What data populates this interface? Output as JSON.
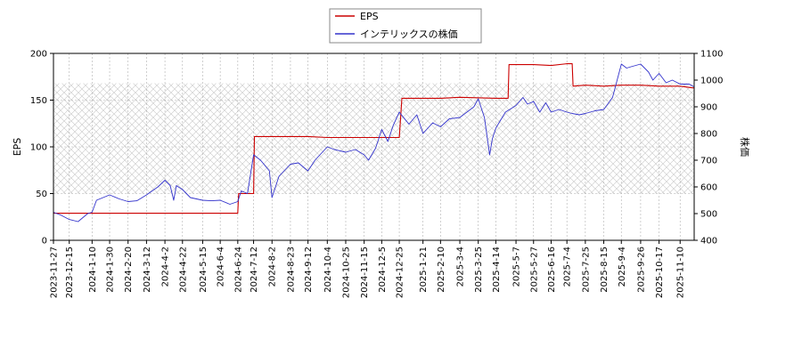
{
  "chart_data": {
    "type": "line",
    "title": "",
    "legend_position": "top-center",
    "grid": true,
    "hatched_band": {
      "axis": "left",
      "from": 50,
      "to": 168
    },
    "x": {
      "label": "",
      "start": "2023-11-27",
      "end": "2025-11-26",
      "tick_labels": [
        "2023-11-27",
        "2023-12-15",
        "2024-1-10",
        "2024-1-30",
        "2024-2-20",
        "2024-3-12",
        "2024-4-2",
        "2024-4-22",
        "2024-5-15",
        "2024-6-4",
        "2024-6-24",
        "2024-7-12",
        "2024-8-2",
        "2024-8-23",
        "2024-9-12",
        "2024-10-4",
        "2024-10-25",
        "2024-11-15",
        "2024-12-5",
        "2024-12-25",
        "2025-1-21",
        "2025-2-10",
        "2025-3-4",
        "2025-3-25",
        "2025-4-14",
        "2025-5-7",
        "2025-5-27",
        "2025-6-16",
        "2025-7-4",
        "2025-7-25",
        "2025-8-15",
        "2025-9-4",
        "2025-9-26",
        "2025-10-17",
        "2025-11-10"
      ]
    },
    "y_left": {
      "label": "EPS",
      "ylim": [
        0,
        200
      ],
      "ticks": [
        0,
        50,
        100,
        150,
        200
      ]
    },
    "y_right": {
      "label": "株価",
      "ylim": [
        400,
        1100
      ],
      "ticks": [
        400,
        500,
        600,
        700,
        800,
        900,
        1000,
        1100
      ]
    },
    "series": [
      {
        "name": "EPS",
        "axis": "left",
        "color": "#cc0000",
        "step": true,
        "points": [
          [
            "2023-11-27",
            29
          ],
          [
            "2024-6-24",
            29
          ],
          [
            "2024-6-25",
            50
          ],
          [
            "2024-7-12",
            50
          ],
          [
            "2024-7-13",
            111
          ],
          [
            "2024-8-23",
            111
          ],
          [
            "2024-9-12",
            111
          ],
          [
            "2024-10-4",
            110
          ],
          [
            "2024-11-15",
            110
          ],
          [
            "2024-12-25",
            110
          ],
          [
            "2024-12-28",
            152
          ],
          [
            "2025-2-10",
            152
          ],
          [
            "2025-3-4",
            153
          ],
          [
            "2025-4-14",
            152
          ],
          [
            "2025-4-28",
            152
          ],
          [
            "2025-4-29",
            188
          ],
          [
            "2025-5-27",
            188
          ],
          [
            "2025-6-16",
            187
          ],
          [
            "2025-7-4",
            189
          ],
          [
            "2025-7-10",
            189
          ],
          [
            "2025-7-11",
            165
          ],
          [
            "2025-7-25",
            166
          ],
          [
            "2025-8-15",
            165
          ],
          [
            "2025-9-4",
            166
          ],
          [
            "2025-9-26",
            166
          ],
          [
            "2025-10-17",
            165
          ],
          [
            "2025-11-10",
            165
          ],
          [
            "2025-11-26",
            163
          ]
        ]
      },
      {
        "name": "インテリックスの株価",
        "axis": "right",
        "color": "#3333cc",
        "step": false,
        "points": [
          [
            "2023-11-27",
            505
          ],
          [
            "2023-12-5",
            495
          ],
          [
            "2023-12-15",
            478
          ],
          [
            "2023-12-25",
            470
          ],
          [
            "2024-1-5",
            500
          ],
          [
            "2024-1-10",
            505
          ],
          [
            "2024-1-15",
            550
          ],
          [
            "2024-1-30",
            570
          ],
          [
            "2024-2-10",
            555
          ],
          [
            "2024-2-20",
            545
          ],
          [
            "2024-3-1",
            548
          ],
          [
            "2024-3-12",
            570
          ],
          [
            "2024-3-25",
            600
          ],
          [
            "2024-4-2",
            625
          ],
          [
            "2024-4-8",
            605
          ],
          [
            "2024-4-12",
            550
          ],
          [
            "2024-4-15",
            605
          ],
          [
            "2024-4-22",
            590
          ],
          [
            "2024-5-1",
            560
          ],
          [
            "2024-5-15",
            550
          ],
          [
            "2024-5-25",
            548
          ],
          [
            "2024-6-4",
            550
          ],
          [
            "2024-6-15",
            535
          ],
          [
            "2024-6-24",
            545
          ],
          [
            "2024-6-28",
            585
          ],
          [
            "2024-7-5",
            575
          ],
          [
            "2024-7-12",
            720
          ],
          [
            "2024-7-20",
            700
          ],
          [
            "2024-7-30",
            660
          ],
          [
            "2024-8-2",
            560
          ],
          [
            "2024-8-10",
            640
          ],
          [
            "2024-8-23",
            685
          ],
          [
            "2024-9-1",
            690
          ],
          [
            "2024-9-12",
            660
          ],
          [
            "2024-9-20",
            700
          ],
          [
            "2024-10-4",
            750
          ],
          [
            "2024-10-12",
            740
          ],
          [
            "2024-10-25",
            730
          ],
          [
            "2024-11-5",
            740
          ],
          [
            "2024-11-15",
            720
          ],
          [
            "2024-11-20",
            700
          ],
          [
            "2024-11-28",
            745
          ],
          [
            "2024-12-5",
            815
          ],
          [
            "2024-12-12",
            770
          ],
          [
            "2024-12-18",
            830
          ],
          [
            "2024-12-25",
            880
          ],
          [
            "2025-1-5",
            835
          ],
          [
            "2025-1-14",
            870
          ],
          [
            "2025-1-21",
            800
          ],
          [
            "2025-2-1",
            840
          ],
          [
            "2025-2-10",
            825
          ],
          [
            "2025-2-20",
            855
          ],
          [
            "2025-3-4",
            860
          ],
          [
            "2025-3-12",
            880
          ],
          [
            "2025-3-20",
            900
          ],
          [
            "2025-3-25",
            930
          ],
          [
            "2025-4-1",
            860
          ],
          [
            "2025-4-7",
            720
          ],
          [
            "2025-4-10",
            780
          ],
          [
            "2025-4-14",
            820
          ],
          [
            "2025-4-25",
            880
          ],
          [
            "2025-5-7",
            905
          ],
          [
            "2025-5-15",
            935
          ],
          [
            "2025-5-20",
            910
          ],
          [
            "2025-5-27",
            920
          ],
          [
            "2025-6-3",
            880
          ],
          [
            "2025-6-10",
            915
          ],
          [
            "2025-6-16",
            880
          ],
          [
            "2025-6-25",
            890
          ],
          [
            "2025-7-4",
            880
          ],
          [
            "2025-7-10",
            875
          ],
          [
            "2025-7-18",
            870
          ],
          [
            "2025-7-25",
            875
          ],
          [
            "2025-8-5",
            885
          ],
          [
            "2025-8-15",
            890
          ],
          [
            "2025-8-25",
            935
          ],
          [
            "2025-9-4",
            1060
          ],
          [
            "2025-9-10",
            1045
          ],
          [
            "2025-9-15",
            1050
          ],
          [
            "2025-9-26",
            1060
          ],
          [
            "2025-10-5",
            1030
          ],
          [
            "2025-10-10",
            1000
          ],
          [
            "2025-10-17",
            1025
          ],
          [
            "2025-10-25",
            990
          ],
          [
            "2025-11-1",
            1000
          ],
          [
            "2025-11-10",
            985
          ],
          [
            "2025-11-20",
            985
          ],
          [
            "2025-11-26",
            975
          ]
        ]
      }
    ]
  }
}
